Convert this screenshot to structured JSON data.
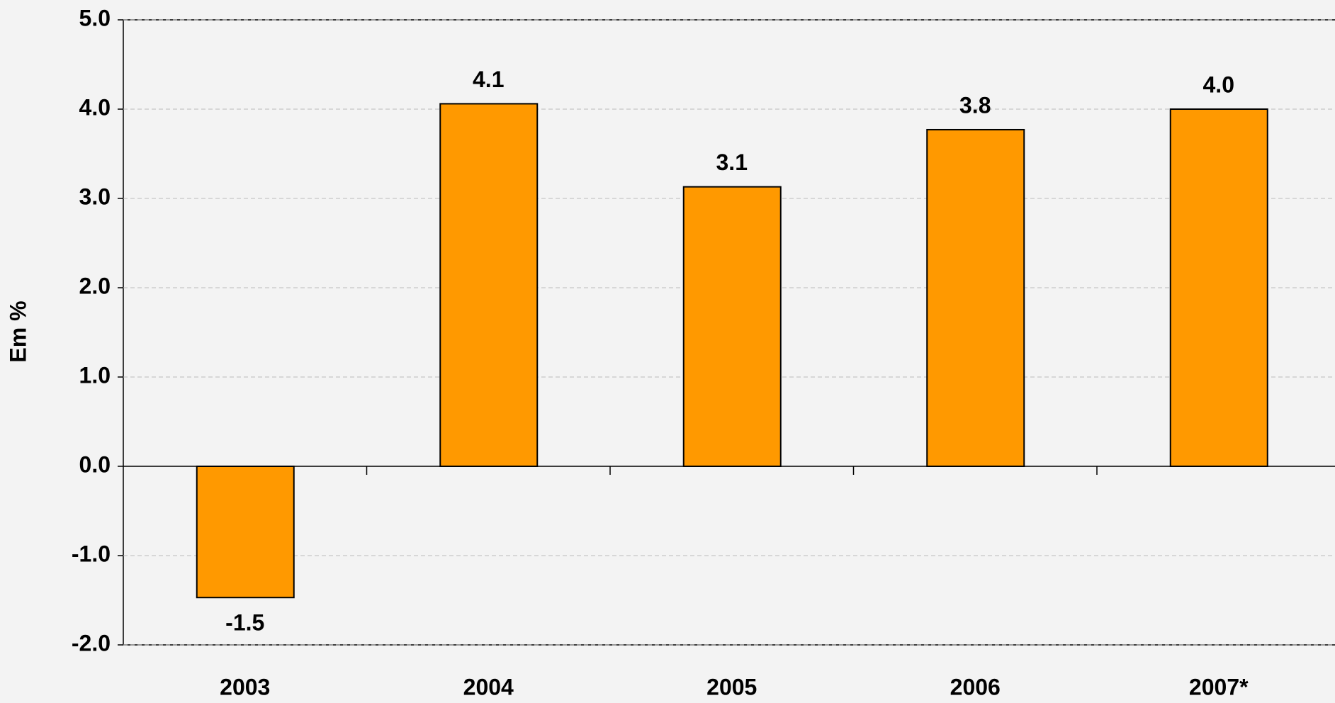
{
  "chart_data": {
    "type": "bar",
    "y_label": "Em %",
    "categories": [
      "2003",
      "2004",
      "2005",
      "2006",
      "2007*"
    ],
    "values": [
      -1.47,
      4.06,
      3.13,
      3.77,
      4.0
    ],
    "value_labels": [
      "-1.5",
      "4.1",
      "3.1",
      "3.8",
      "4.0"
    ],
    "color": "#ff9900",
    "ylim": [
      -2,
      5
    ],
    "yticks": [
      {
        "value": -2,
        "label": "-2.0"
      },
      {
        "value": -1,
        "label": "-1.0"
      },
      {
        "value": 0,
        "label": "0.0"
      },
      {
        "value": 1,
        "label": "1.0"
      },
      {
        "value": 2,
        "label": "2.0"
      },
      {
        "value": 3,
        "label": "3.0"
      },
      {
        "value": 4,
        "label": "4.0"
      },
      {
        "value": 5,
        "label": "5.0"
      }
    ],
    "grid": true
  }
}
